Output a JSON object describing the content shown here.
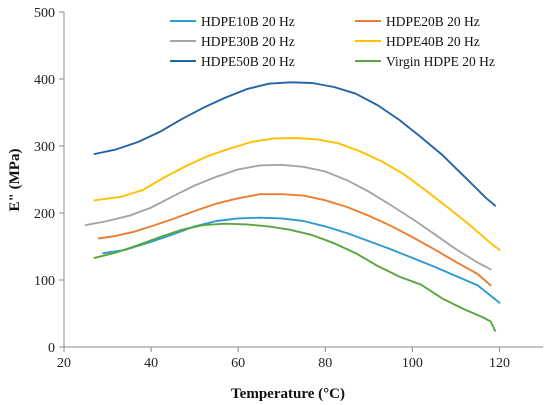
{
  "chart_data": {
    "type": "line",
    "title": "",
    "xlabel": "Temperature (°C)",
    "ylabel": "E\" (MPa)",
    "xlim": [
      20,
      130
    ],
    "ylim": [
      0,
      500
    ],
    "xticks": [
      20,
      40,
      60,
      80,
      100,
      120
    ],
    "yticks": [
      0,
      100,
      200,
      300,
      400,
      500
    ],
    "grid": false,
    "legend": "top-right",
    "series": [
      {
        "name": "HDPE10B 20 Hz",
        "color": "#2e9ad0",
        "x": [
          29,
          34,
          40,
          45,
          50,
          55,
          60,
          65,
          70,
          75,
          80,
          85,
          90,
          95,
          100,
          105,
          110,
          115,
          120
        ],
        "y": [
          140,
          145,
          157,
          168,
          180,
          188,
          192,
          193,
          192,
          188,
          180,
          170,
          158,
          146,
          133,
          120,
          106,
          92,
          66
        ]
      },
      {
        "name": "HDPE20B 20 Hz",
        "color": "#ed7d31",
        "x": [
          28,
          32,
          36,
          40,
          45,
          50,
          55,
          60,
          65,
          70,
          75,
          80,
          85,
          90,
          95,
          100,
          105,
          110,
          115,
          118
        ],
        "y": [
          162,
          166,
          172,
          180,
          191,
          203,
          214,
          222,
          228,
          228,
          226,
          219,
          209,
          196,
          181,
          164,
          146,
          127,
          109,
          92
        ]
      },
      {
        "name": "HDPE30B 20 Hz",
        "color": "#a5a5a5",
        "x": [
          25,
          30,
          35,
          40,
          45,
          50,
          55,
          60,
          65,
          70,
          75,
          80,
          85,
          90,
          95,
          100,
          105,
          110,
          115,
          118
        ],
        "y": [
          182,
          188,
          196,
          208,
          225,
          241,
          254,
          265,
          271,
          272,
          269,
          262,
          249,
          232,
          212,
          191,
          169,
          146,
          126,
          116
        ]
      },
      {
        "name": "HDPE40B 20 Hz",
        "color": "#ffc000",
        "x": [
          27,
          33,
          38,
          43,
          48,
          53,
          58,
          63,
          68,
          73,
          78,
          83,
          88,
          93,
          98,
          103,
          108,
          113,
          118,
          120
        ],
        "y": [
          219,
          224,
          234,
          253,
          270,
          285,
          296,
          306,
          311,
          312,
          310,
          304,
          292,
          277,
          258,
          234,
          209,
          183,
          155,
          145
        ]
      },
      {
        "name": "HDPE50B 20 Hz",
        "color": "#2264a8",
        "x": [
          27,
          32,
          37,
          42,
          47,
          52,
          57,
          62,
          67,
          72,
          77,
          82,
          87,
          92,
          97,
          102,
          107,
          112,
          117,
          119
        ],
        "y": [
          288,
          295,
          306,
          321,
          340,
          357,
          372,
          385,
          393,
          395,
          394,
          388,
          378,
          361,
          339,
          313,
          286,
          254,
          222,
          211
        ]
      },
      {
        "name": "Virgin HDPE 20 Hz",
        "color": "#58a63e",
        "x": [
          27,
          32,
          37,
          42,
          47,
          52,
          57,
          62,
          67,
          72,
          77,
          82,
          87,
          92,
          97,
          102,
          107,
          112,
          116,
          118,
          119
        ],
        "y": [
          133,
          141,
          152,
          164,
          175,
          182,
          184,
          183,
          180,
          175,
          167,
          155,
          140,
          121,
          105,
          93,
          72,
          56,
          45,
          38,
          24
        ]
      }
    ]
  }
}
